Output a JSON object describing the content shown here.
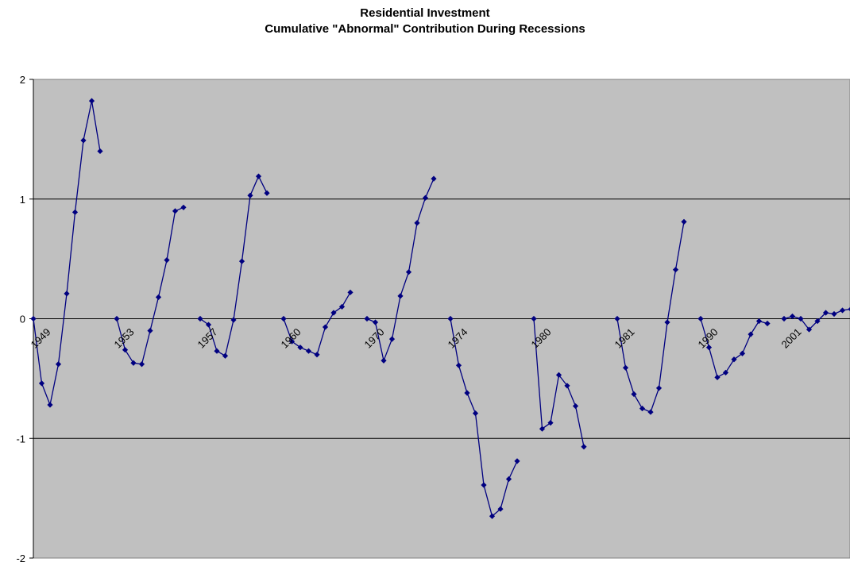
{
  "chart_data": {
    "type": "line",
    "title": "Residential Investment",
    "subtitle": "Cumulative \"Abnormal\" Contribution During Recessions",
    "xlabel": "",
    "ylabel": "",
    "ylim": [
      -2,
      2
    ],
    "yticks": [
      2,
      1,
      0,
      -1,
      -2
    ],
    "grid": true,
    "legend": "none",
    "colors": {
      "plot_background": "#c0c0c0",
      "line": "#000080",
      "marker": "#000080",
      "gridline": "#000000"
    },
    "groups": [
      {
        "label": "1949",
        "values": [
          0,
          -0.54,
          -0.72,
          -0.38,
          0.21,
          0.89,
          1.49,
          1.82,
          1.4
        ]
      },
      {
        "label": "1953",
        "values": [
          0,
          -0.26,
          -0.37,
          -0.38,
          -0.1,
          0.18,
          0.49,
          0.9,
          0.93
        ]
      },
      {
        "label": "1957",
        "values": [
          0,
          -0.05,
          -0.27,
          -0.31,
          -0.01,
          0.48,
          1.03,
          1.19,
          1.05
        ]
      },
      {
        "label": "1960",
        "values": [
          0,
          -0.19,
          -0.24,
          -0.27,
          -0.3,
          -0.07,
          0.05,
          0.1,
          0.22
        ]
      },
      {
        "label": "1970",
        "values": [
          0,
          -0.03,
          -0.35,
          -0.17,
          0.19,
          0.39,
          0.8,
          1.01,
          1.17
        ]
      },
      {
        "label": "1974",
        "values": [
          0,
          -0.39,
          -0.62,
          -0.79,
          -1.39,
          -1.65,
          -1.59,
          -1.34,
          -1.19
        ]
      },
      {
        "label": "1980",
        "values": [
          0,
          -0.92,
          -0.87,
          -0.47,
          -0.56,
          -0.73,
          -1.07
        ]
      },
      {
        "label": "1981",
        "values": [
          0,
          -0.41,
          -0.63,
          -0.75,
          -0.78,
          -0.58,
          -0.03,
          0.41,
          0.81
        ]
      },
      {
        "label": "1990",
        "values": [
          0,
          -0.24,
          -0.49,
          -0.45,
          -0.34,
          -0.29,
          -0.13,
          -0.02,
          -0.04
        ]
      },
      {
        "label": "2001",
        "values": [
          0,
          0.02,
          0,
          -0.09,
          -0.02,
          0.05,
          0.04,
          0.07,
          0.08
        ]
      }
    ]
  }
}
